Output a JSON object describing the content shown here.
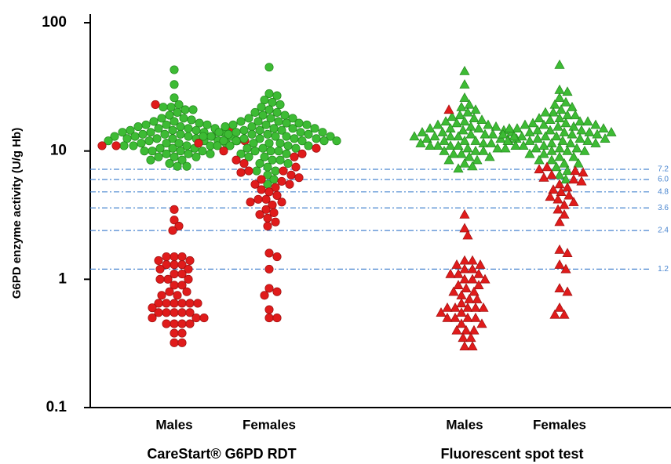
{
  "chart_data": {
    "type": "beeswarm",
    "y_label": "G6PD enzyme activity (U/g Hb)",
    "categories": [
      "Males",
      "Females",
      "Males",
      "Females"
    ],
    "groups": [
      {
        "label": "CareStart® G6PD RDT",
        "categories": [
          0,
          1
        ]
      },
      {
        "label": "Fluorescent spot test",
        "categories": [
          2,
          3
        ]
      }
    ],
    "markers": [
      "circle",
      "circle",
      "triangle",
      "triangle"
    ],
    "ylim": [
      0.1,
      100
    ],
    "yticks": [
      0.1,
      1,
      10,
      100
    ],
    "log_y": true,
    "reference_lines": [
      7.2,
      {
        "value": 6,
        "label": "6.0"
      },
      4.8,
      3.6,
      2.4,
      1.2
    ],
    "reference_color": "#4a86d0",
    "series": [
      {
        "color": "#3dbb34",
        "edge": "#23881d",
        "values": [
          [
            43,
            33,
            26,
            23,
            22,
            22,
            21,
            21,
            20,
            19,
            18,
            18,
            17.5,
            17,
            17,
            16.5,
            16,
            16,
            16,
            15.5,
            15.5,
            15,
            15,
            15,
            14.5,
            14.5,
            14.5,
            14,
            14,
            14,
            14,
            13.5,
            13.5,
            13.5,
            13,
            13,
            13,
            13,
            13,
            12.5,
            12.5,
            12.5,
            12.5,
            12,
            12,
            12,
            12,
            12,
            11.5,
            11.5,
            11.5,
            11.5,
            11,
            11,
            11,
            11,
            10.5,
            10.5,
            10.5,
            10,
            10,
            10,
            10,
            9.5,
            9.5,
            9.5,
            9,
            9,
            9,
            8.5,
            8.5,
            8,
            7.6,
            7.6
          ],
          [
            45,
            28,
            27,
            25,
            24,
            23,
            22,
            21,
            20,
            20,
            19,
            19,
            18,
            18,
            18,
            17,
            17,
            17,
            16.5,
            16.5,
            16,
            16,
            16,
            15.5,
            15.5,
            15,
            15,
            15,
            14.5,
            14.5,
            14.5,
            14,
            14,
            14,
            14,
            13.5,
            13.5,
            13.5,
            13.5,
            13,
            13,
            13,
            13,
            13,
            12.5,
            12.5,
            12.5,
            12.5,
            12,
            12,
            12,
            12,
            12,
            11.5,
            11.5,
            11.5,
            11,
            11,
            11,
            11,
            10.5,
            10.5,
            10.5,
            10,
            10,
            10,
            9.5,
            9.5,
            9,
            9,
            8.5,
            8.5,
            8,
            8,
            7.5,
            7,
            7,
            6.5,
            6,
            5.5
          ],
          [
            42,
            33,
            26,
            23,
            22,
            21,
            20,
            19,
            18.5,
            18,
            17.5,
            17,
            17,
            16.5,
            16,
            16,
            15.5,
            15.5,
            15,
            15,
            15,
            14.5,
            14.5,
            14,
            14,
            14,
            13.5,
            13.5,
            13.5,
            13,
            13,
            13,
            13,
            12.5,
            12.5,
            12.5,
            12,
            12,
            12,
            12,
            11.5,
            11.5,
            11.5,
            11,
            11,
            11,
            11,
            10.5,
            10.5,
            10.5,
            10,
            10,
            10,
            9.5,
            9.5,
            9,
            9,
            8.5,
            8.5,
            8,
            7.6,
            7.3
          ],
          [
            47,
            30,
            29,
            26,
            24,
            23,
            22,
            21,
            20,
            20,
            19,
            19,
            18,
            18,
            17.5,
            17,
            17,
            16.5,
            16.5,
            16,
            16,
            16,
            15.5,
            15.5,
            15,
            15,
            15,
            14.5,
            14.5,
            14.5,
            14,
            14,
            14,
            14,
            13.5,
            13.5,
            13.5,
            13,
            13,
            13,
            13,
            12.5,
            12.5,
            12.5,
            12,
            12,
            12,
            12,
            11.5,
            11.5,
            11.5,
            11,
            11,
            11,
            10.5,
            10.5,
            10.5,
            10,
            10,
            10,
            9.5,
            9.5,
            9,
            9,
            8.5,
            8.5,
            8,
            8,
            7.5,
            7,
            6.5,
            6
          ]
        ]
      },
      {
        "color": "#e01b1b",
        "edge": "#9c1010",
        "values": [
          [
            23,
            15,
            12,
            11,
            11,
            3.5,
            2.9,
            2.6,
            2.4,
            1.5,
            1.5,
            1.5,
            1.4,
            1.4,
            1.3,
            1.3,
            1.3,
            1.2,
            1.2,
            1.1,
            1.1,
            1.0,
            1.0,
            1.0,
            0.9,
            0.9,
            0.8,
            0.8,
            0.75,
            0.75,
            0.65,
            0.65,
            0.65,
            0.65,
            0.65,
            0.65,
            0.6,
            0.55,
            0.55,
            0.55,
            0.55,
            0.55,
            0.5,
            0.5,
            0.5,
            0.45,
            0.45,
            0.45,
            0.45,
            0.38,
            0.38,
            0.32,
            0.32
          ],
          [
            11.5,
            10.5,
            10,
            9.5,
            9,
            8.5,
            8,
            7.5,
            7,
            7,
            6.8,
            6.5,
            6.2,
            6,
            5.8,
            5.5,
            5.5,
            5.2,
            5,
            4.8,
            4.5,
            4.2,
            4.2,
            4,
            4,
            3.8,
            3.5,
            3.3,
            3.2,
            3.0,
            2.8,
            2.6,
            1.6,
            1.5,
            1.2,
            0.85,
            0.8,
            0.75,
            0.58,
            0.5,
            0.5
          ],
          [
            21,
            3.2,
            2.5,
            2.2,
            1.4,
            1.4,
            1.3,
            1.3,
            1.2,
            1.2,
            1.1,
            1.1,
            1.1,
            1.0,
            1.0,
            1.0,
            0.9,
            0.9,
            0.85,
            0.8,
            0.8,
            0.75,
            0.7,
            0.7,
            0.65,
            0.6,
            0.6,
            0.6,
            0.6,
            0.6,
            0.55,
            0.55,
            0.5,
            0.5,
            0.5,
            0.5,
            0.45,
            0.45,
            0.4,
            0.4,
            0.4,
            0.35,
            0.35,
            0.3,
            0.3
          ],
          [
            7.5,
            7.2,
            7,
            6.8,
            6.5,
            6.2,
            6,
            5.8,
            5.5,
            5.2,
            5,
            4.8,
            4.5,
            4.4,
            4.2,
            4,
            3.8,
            3.5,
            3.2,
            2.8,
            1.7,
            1.6,
            1.3,
            1.2,
            0.85,
            0.8,
            0.6,
            0.53,
            0.53
          ]
        ]
      }
    ]
  }
}
